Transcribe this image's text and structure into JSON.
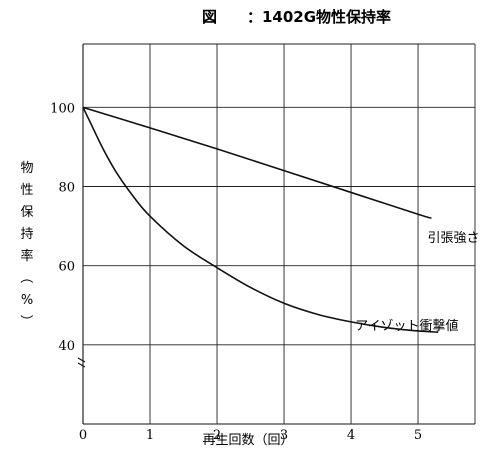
{
  "chart_data": {
    "type": "line",
    "title": "図　　：1402G物性保持率",
    "xlabel": "再生回数（回）",
    "ylabel": "物性保持率（%）",
    "xlim": [
      0,
      5.85
    ],
    "ylim": [
      20,
      116
    ],
    "x_ticks": [
      "0",
      "1",
      "2",
      "3",
      "4",
      "5"
    ],
    "y_ticks": [
      "40",
      "60",
      "80",
      "100"
    ],
    "grid": true,
    "series": [
      {
        "name": "引張強さ",
        "x": [
          0,
          1,
          2,
          3,
          4,
          5,
          5.2
        ],
        "y": [
          100,
          94.8,
          89.5,
          84,
          78.5,
          73,
          72
        ]
      },
      {
        "name": "アイゾット衝撃値",
        "x": [
          0,
          0.1,
          0.3,
          0.5,
          0.75,
          1,
          1.5,
          2,
          2.5,
          3,
          3.5,
          4,
          4.5,
          5,
          5.3
        ],
        "y": [
          100,
          96.5,
          89.5,
          83.5,
          77.5,
          72.5,
          65,
          59.5,
          54.5,
          50.5,
          47.7,
          45.8,
          44.4,
          43.5,
          43.2
        ]
      }
    ]
  }
}
